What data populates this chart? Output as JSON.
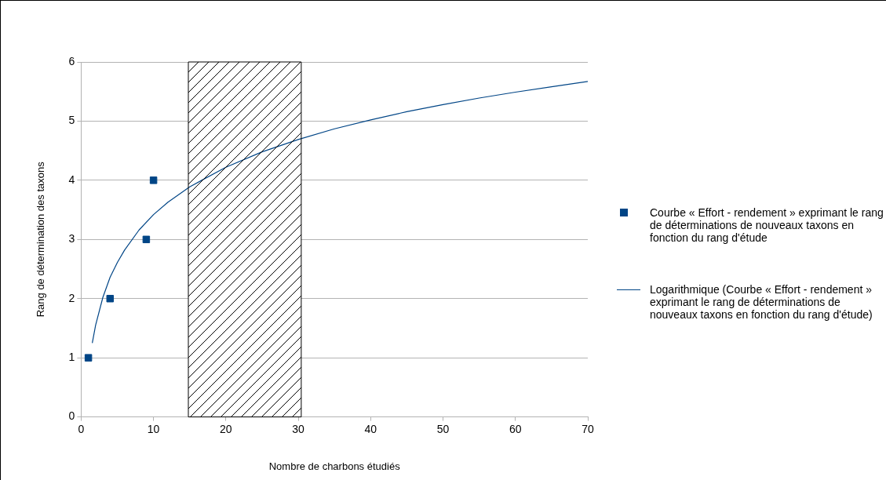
{
  "chart_data": {
    "type": "scatter",
    "xlabel": "Nombre de charbons étudiés",
    "ylabel": "Rang de détermination des taxons",
    "xlim": [
      0,
      70
    ],
    "xticks": [
      0,
      10,
      20,
      30,
      40,
      50,
      60,
      70
    ],
    "ylim": [
      0,
      6
    ],
    "yticks": [
      0,
      1,
      2,
      3,
      4,
      5,
      6
    ],
    "grid": "y",
    "legend": "right",
    "series": [
      {
        "name": "Courbe « Effort - rendement » exprimant le rang de déterminations de nouveaux taxons en fonction du rang d'étude",
        "color": "#004586",
        "marker": "square",
        "x": [
          1,
          4,
          9,
          10
        ],
        "values": [
          1,
          2,
          3,
          4
        ]
      },
      {
        "type": "line",
        "name": "Logarithmique (Courbe « Effort - rendement » exprimant le rang de déterminations de nouveaux taxons en fonction du rang d'étude)",
        "color": "#004586",
        "marker": "none",
        "x": [
          1.54,
          2,
          3,
          4,
          5,
          6,
          8,
          10,
          12,
          15,
          20,
          25,
          30,
          35,
          40,
          45,
          50,
          55,
          60,
          65,
          70
        ],
        "values": [
          1.25,
          1.55,
          2.02,
          2.36,
          2.61,
          2.82,
          3.16,
          3.42,
          3.63,
          3.89,
          4.22,
          4.48,
          4.69,
          4.87,
          5.02,
          5.16,
          5.28,
          5.39,
          5.49,
          5.58,
          5.67
        ]
      }
    ],
    "bands": [
      {
        "axis": "x",
        "from": 14.8,
        "to": 30.4,
        "color": "#ffffff"
      }
    ]
  }
}
